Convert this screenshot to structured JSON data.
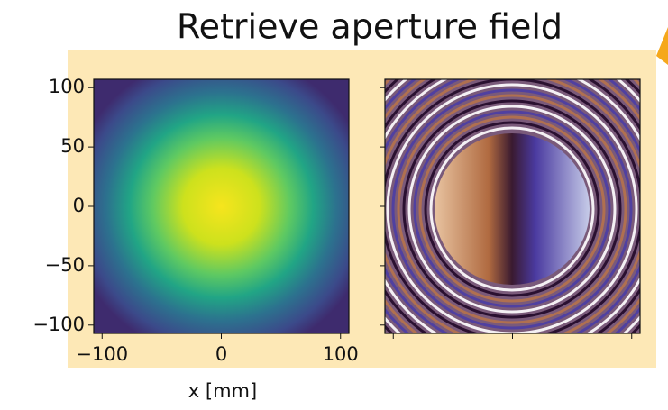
{
  "title": "Retrieve aperture field",
  "chart_data": [
    {
      "type": "heatmap",
      "xlabel": "x [mm]",
      "xlim": [
        -107,
        107
      ],
      "ylim": [
        -107,
        107
      ],
      "xticks": [
        {
          "value": -100,
          "label": "−100"
        },
        0,
        100
      ],
      "yticks": [
        100,
        50,
        0,
        {
          "value": -50,
          "label": "−50"
        },
        {
          "value": -100,
          "label": "−100"
        }
      ]
    },
    {
      "type": "heatmap",
      "xlim": [
        -107,
        107
      ],
      "ylim": [
        -107,
        107
      ]
    }
  ]
}
